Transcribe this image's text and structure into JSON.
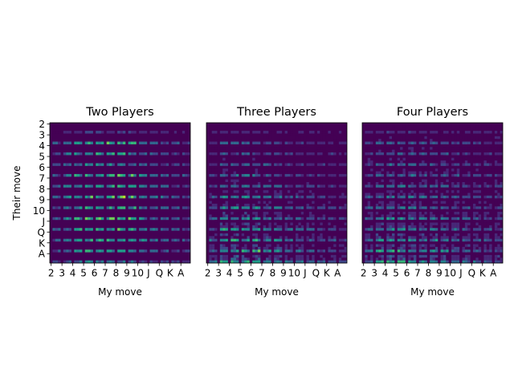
{
  "chart_data": {
    "type": "heatmap",
    "ranks": [
      "2",
      "3",
      "4",
      "5",
      "6",
      "7",
      "8",
      "9",
      "10",
      "J",
      "Q",
      "K",
      "A"
    ],
    "colormap": [
      "#440154",
      "#482878",
      "#3e4989",
      "#31688e",
      "#26828e",
      "#1f9e89",
      "#35b779",
      "#6ece58",
      "#b5de2b",
      "#fde725"
    ],
    "background_color": "#440154",
    "panels": [
      {
        "title": "Two Players",
        "xlabel": "My move",
        "ylabel": "Their move",
        "noise": 0.02,
        "rowweights": [
          0.3,
          0.8,
          0.75,
          0.65,
          0.9,
          0.8,
          0.95,
          0.8,
          0.9,
          0.85,
          0.85,
          0.75,
          0.6
        ],
        "colweights": [
          0.4,
          0.6,
          0.75,
          0.85,
          0.85,
          0.9,
          0.9,
          0.8,
          0.6,
          0.5,
          0.45,
          0.4,
          0.35
        ],
        "scale": 1.0
      },
      {
        "title": "Three Players",
        "xlabel": "My move",
        "ylabel": "",
        "noise": 0.08,
        "rowweights": [
          0.2,
          0.5,
          0.45,
          0.5,
          0.55,
          0.6,
          0.7,
          0.75,
          0.8,
          0.85,
          0.9,
          0.95,
          1.0
        ],
        "colweights": [
          0.5,
          0.8,
          0.85,
          0.85,
          0.8,
          0.7,
          0.65,
          0.55,
          0.5,
          0.45,
          0.4,
          0.35,
          0.3
        ],
        "scale": 0.85
      },
      {
        "title": "Four Players",
        "xlabel": "My move",
        "ylabel": "",
        "noise": 0.1,
        "rowweights": [
          0.25,
          0.55,
          0.5,
          0.55,
          0.6,
          0.65,
          0.7,
          0.75,
          0.8,
          0.85,
          0.9,
          0.95,
          1.0
        ],
        "colweights": [
          0.5,
          0.75,
          0.8,
          0.8,
          0.75,
          0.7,
          0.65,
          0.6,
          0.55,
          0.5,
          0.45,
          0.4,
          0.35
        ],
        "scale": 0.8
      }
    ]
  }
}
